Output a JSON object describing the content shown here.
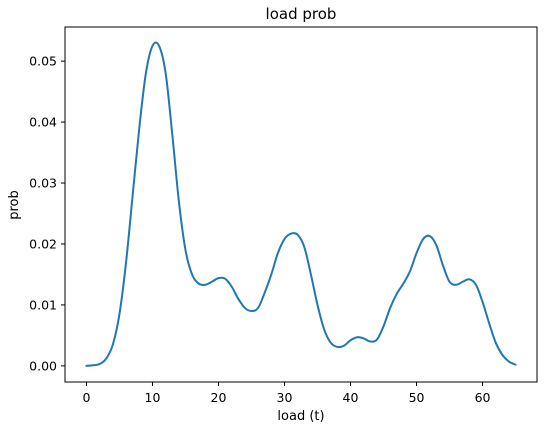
{
  "chart_data": {
    "type": "line",
    "title": "load prob",
    "xlabel": "load (t)",
    "ylabel": "prob",
    "xlim": [
      -3.25,
      68.25
    ],
    "ylim": [
      -0.00265,
      0.0556
    ],
    "xticks": [
      0,
      10,
      20,
      30,
      40,
      50,
      60
    ],
    "yticks": [
      0.0,
      0.01,
      0.02,
      0.03,
      0.04,
      0.05
    ],
    "ytick_labels": [
      "0.00",
      "0.01",
      "0.02",
      "0.03",
      "0.04",
      "0.05"
    ],
    "grid": false,
    "legend": "none",
    "series": [
      {
        "color": "#1f77b4",
        "x": [
          0,
          1,
          2,
          3,
          4,
          5,
          6,
          7,
          8,
          9,
          10,
          11,
          12,
          13,
          14,
          15,
          16,
          17,
          18,
          19,
          20,
          21,
          22,
          23,
          24,
          25,
          26,
          27,
          28,
          29,
          30,
          31,
          32,
          33,
          34,
          35,
          36,
          37,
          38,
          39,
          40,
          41,
          42,
          43,
          44,
          45,
          46,
          47,
          48,
          49,
          50,
          51,
          52,
          53,
          54,
          55,
          56,
          57,
          58,
          59,
          60,
          61,
          62,
          63,
          64,
          65
        ],
        "y": [
          0.0,
          0.0001,
          0.0003,
          0.0012,
          0.0035,
          0.0085,
          0.017,
          0.028,
          0.039,
          0.048,
          0.0525,
          0.0525,
          0.048,
          0.038,
          0.027,
          0.019,
          0.015,
          0.0135,
          0.0133,
          0.0138,
          0.0144,
          0.0143,
          0.013,
          0.011,
          0.0095,
          0.009,
          0.0095,
          0.012,
          0.015,
          0.0185,
          0.0208,
          0.0217,
          0.0215,
          0.0195,
          0.015,
          0.01,
          0.006,
          0.0038,
          0.0031,
          0.0033,
          0.0042,
          0.0047,
          0.0045,
          0.004,
          0.0043,
          0.0065,
          0.0095,
          0.0118,
          0.0135,
          0.0155,
          0.0185,
          0.0208,
          0.0213,
          0.0198,
          0.0165,
          0.0138,
          0.0133,
          0.0138,
          0.0142,
          0.0133,
          0.0105,
          0.007,
          0.0038,
          0.0018,
          0.0007,
          0.0002
        ]
      }
    ]
  }
}
